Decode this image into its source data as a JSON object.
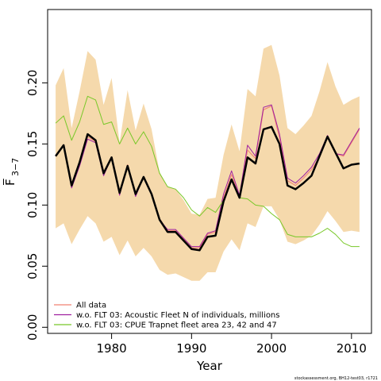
{
  "chart_data": {
    "type": "line",
    "title": "",
    "xlabel": "Year",
    "ylabel": "F̅",
    "ylabel_subscript": "3−7",
    "xlim": [
      1972,
      2012.5
    ],
    "ylim": [
      -0.005,
      0.26
    ],
    "x_ticks": [
      1980,
      1990,
      2000,
      2010
    ],
    "y_ticks": [
      0.0,
      0.05,
      0.1,
      0.15,
      0.2
    ],
    "x_tick_labels": [
      "1980",
      "1990",
      "2000",
      "2010"
    ],
    "y_tick_labels": [
      "0.00",
      "0.05",
      "0.10",
      "0.15",
      "0.20"
    ],
    "grid": false,
    "legend_position": "bottom-left",
    "x": [
      1973,
      1974,
      1975,
      1976,
      1977,
      1978,
      1979,
      1980,
      1981,
      1982,
      1983,
      1984,
      1985,
      1986,
      1987,
      1988,
      1989,
      1990,
      1991,
      1992,
      1993,
      1994,
      1995,
      1996,
      1997,
      1998,
      1999,
      2000,
      2001,
      2002,
      2003,
      2004,
      2005,
      2006,
      2007,
      2008,
      2009,
      2010,
      2011
    ],
    "band": {
      "color": "#f5d9ac",
      "upper": [
        0.198,
        0.212,
        0.163,
        0.193,
        0.226,
        0.219,
        0.182,
        0.204,
        0.151,
        0.194,
        0.161,
        0.183,
        0.162,
        0.127,
        0.115,
        0.113,
        0.104,
        0.093,
        0.092,
        0.105,
        0.106,
        0.141,
        0.166,
        0.144,
        0.195,
        0.189,
        0.228,
        0.231,
        0.206,
        0.163,
        0.158,
        0.165,
        0.173,
        0.193,
        0.217,
        0.197,
        0.182,
        0.186,
        0.189
      ],
      "lower": [
        0.081,
        0.085,
        0.068,
        0.08,
        0.091,
        0.085,
        0.07,
        0.074,
        0.059,
        0.071,
        0.058,
        0.065,
        0.058,
        0.047,
        0.043,
        0.044,
        0.041,
        0.038,
        0.038,
        0.045,
        0.045,
        0.062,
        0.072,
        0.063,
        0.085,
        0.082,
        0.099,
        0.099,
        0.088,
        0.07,
        0.068,
        0.071,
        0.075,
        0.084,
        0.095,
        0.087,
        0.078,
        0.079,
        0.078
      ]
    },
    "series": [
      {
        "name": "All data",
        "color": "#f08070",
        "width": 1,
        "values": [
          0.14,
          0.149,
          0.118,
          0.133,
          0.156,
          0.152,
          0.127,
          0.139,
          0.11,
          0.133,
          0.108,
          0.123,
          0.109,
          0.089,
          0.079,
          0.079,
          0.072,
          0.065,
          0.065,
          0.076,
          0.078,
          0.106,
          0.125,
          0.107,
          0.145,
          0.138,
          0.178,
          0.181,
          0.155,
          0.12,
          0.116,
          0.122,
          0.129,
          0.139,
          0.155,
          0.142,
          0.14,
          0.151,
          0.162
        ]
      },
      {
        "name": "w.o. FLT 03: Acoustic Fleet  N of individuals, millions",
        "color": "#a020a0",
        "width": 1,
        "values": [
          0.14,
          0.149,
          0.114,
          0.132,
          0.154,
          0.151,
          0.124,
          0.139,
          0.108,
          0.132,
          0.107,
          0.123,
          0.109,
          0.088,
          0.08,
          0.08,
          0.073,
          0.066,
          0.066,
          0.077,
          0.079,
          0.109,
          0.128,
          0.108,
          0.149,
          0.14,
          0.18,
          0.182,
          0.158,
          0.122,
          0.118,
          0.124,
          0.131,
          0.142,
          0.157,
          0.142,
          0.141,
          0.152,
          0.163
        ]
      },
      {
        "name": "w.o. FLT 03: CPUE Trapnet fleet area 23, 42 and 47",
        "color": "#78c828",
        "width": 1,
        "values": [
          0.167,
          0.173,
          0.153,
          0.168,
          0.189,
          0.186,
          0.166,
          0.168,
          0.15,
          0.163,
          0.15,
          0.16,
          0.148,
          0.126,
          0.115,
          0.113,
          0.106,
          0.096,
          0.091,
          0.098,
          0.094,
          0.104,
          0.12,
          0.106,
          0.105,
          0.1,
          0.099,
          0.093,
          0.088,
          0.076,
          0.074,
          0.074,
          0.074,
          0.077,
          0.081,
          0.076,
          0.069,
          0.066,
          0.066
        ]
      },
      {
        "name": "",
        "color": "#000000",
        "width": 2.5,
        "values": [
          0.14,
          0.149,
          0.116,
          0.135,
          0.158,
          0.153,
          0.126,
          0.139,
          0.11,
          0.132,
          0.109,
          0.123,
          0.109,
          0.088,
          0.078,
          0.078,
          0.071,
          0.064,
          0.063,
          0.074,
          0.075,
          0.103,
          0.121,
          0.106,
          0.139,
          0.134,
          0.162,
          0.164,
          0.15,
          0.116,
          0.113,
          0.118,
          0.124,
          0.14,
          0.156,
          0.143,
          0.13,
          0.133,
          0.134
        ]
      }
    ],
    "legend": [
      {
        "label": "All data",
        "color": "#f08070"
      },
      {
        "label": "w.o. FLT 03: Acoustic Fleet  N of individuals, millions",
        "color": "#a020a0"
      },
      {
        "label": "w.o. FLT 03: CPUE Trapnet fleet area 23, 42 and 47",
        "color": "#78c828"
      }
    ],
    "credit": "stockassessment.org, BH12-test03, r1721"
  }
}
